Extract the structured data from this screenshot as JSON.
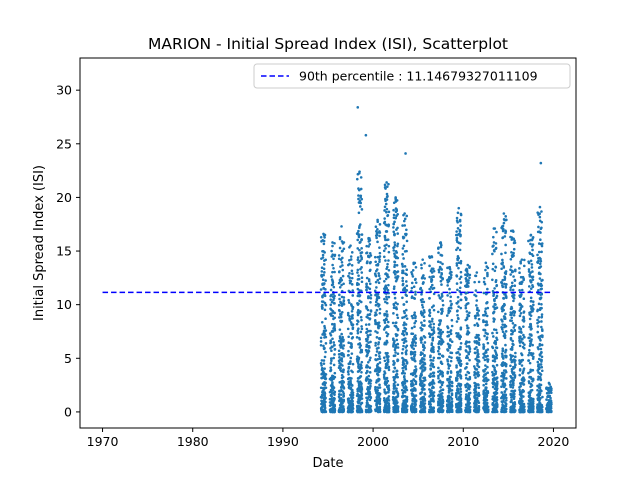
{
  "chart_data": {
    "type": "scatter",
    "title": "MARION - Initial Spread Index (ISI), Scatterplot",
    "xlabel": "Date",
    "ylabel": "Initial Spread Index (ISI)",
    "xlim": [
      1967.5,
      2022.5
    ],
    "ylim": [
      -1.5,
      33
    ],
    "x_ticks": [
      1970,
      1980,
      1990,
      2000,
      2010,
      2020
    ],
    "x_tick_labels": [
      "1970",
      "1980",
      "1990",
      "2000",
      "2010",
      "2020"
    ],
    "y_ticks": [
      0,
      5,
      10,
      15,
      20,
      25,
      30
    ],
    "y_tick_labels": [
      "0",
      "5",
      "10",
      "15",
      "20",
      "25",
      "30"
    ],
    "grid": false,
    "legend": {
      "placement": "upper right",
      "entries": [
        {
          "label": "90th percentile : 11.14679327011109",
          "style": "dashed-line",
          "color": "#0000ff"
        }
      ]
    },
    "reference_line": {
      "y": 11.14679327011109,
      "x_start": 1970,
      "x_end": 2019.7,
      "color": "#0000ff",
      "style": "dashed"
    },
    "series": [
      {
        "color": "#1f77b4",
        "seasons": [
          1994,
          1995,
          1996,
          1997,
          1998,
          1999,
          2000,
          2001,
          2002,
          2003,
          2004,
          2005,
          2006,
          2007,
          2008,
          2009,
          2010,
          2011,
          2012,
          2013,
          2014,
          2015,
          2016,
          2017,
          2018,
          2019
        ],
        "season_peaks": [
          16.6,
          15.8,
          17.3,
          15.5,
          22.4,
          16.2,
          17.9,
          21.4,
          19.9,
          18.5,
          13.9,
          14.2,
          14.5,
          15.8,
          13.5,
          19.0,
          13.7,
          13.0,
          13.9,
          17.1,
          18.5,
          16.9,
          14.2,
          16.5,
          19.1,
          2.7
        ],
        "outliers": [
          {
            "x": 1998.3,
            "y": 28.4
          },
          {
            "x": 1999.2,
            "y": 25.8
          },
          {
            "x": 2003.6,
            "y": 24.1
          },
          {
            "x": 2018.6,
            "y": 23.2
          },
          {
            "x": 2002.5,
            "y": 20.0
          }
        ]
      }
    ]
  }
}
